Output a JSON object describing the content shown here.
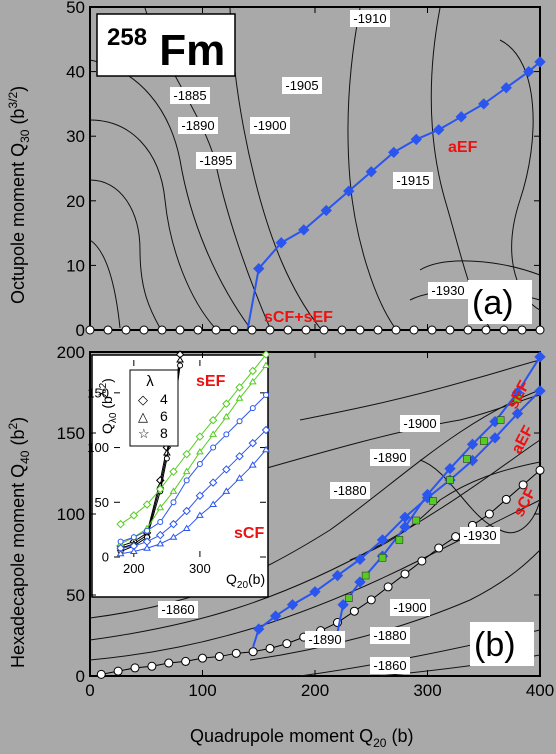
{
  "nucleus": {
    "mass": "258",
    "symbol": "Fm"
  },
  "panel_labels": {
    "a": "(a)",
    "b": "(b)"
  },
  "chart_data": [
    {
      "type": "line",
      "subplot": "a",
      "ylabel": "Octupole moment Q30 (b^3/2)",
      "xlim": [
        0,
        400
      ],
      "ylim": [
        0,
        50
      ],
      "xticks": [
        0,
        100,
        200,
        300,
        400
      ],
      "yticks": [
        0,
        10,
        20,
        30,
        40,
        50
      ],
      "contour_labels": [
        "-1885",
        "-1890",
        "-1895",
        "-1900",
        "-1905",
        "-1910",
        "-1915",
        "-1930"
      ],
      "path_labels": {
        "aEF": "aEF",
        "sym": "sCF+sEF"
      },
      "series": [
        {
          "name": "aEF",
          "color": "#2a55ee",
          "x": [
            140,
            150,
            170,
            190,
            210,
            230,
            250,
            270,
            290,
            310,
            330,
            350,
            370,
            390,
            400
          ],
          "y": [
            0,
            9.5,
            13.5,
            15.5,
            18.5,
            21.5,
            24.5,
            27.5,
            29.5,
            31,
            33,
            35,
            37.5,
            40,
            41.5
          ]
        },
        {
          "name": "sCF+sEF",
          "color": "#ffffff",
          "x": [
            0,
            16,
            32,
            48,
            64,
            80,
            96,
            112,
            128,
            144,
            160,
            176,
            192,
            208,
            224,
            240,
            256,
            272,
            288,
            304,
            320,
            336,
            352,
            368,
            384,
            400
          ],
          "y": [
            0,
            0,
            0,
            0,
            0,
            0,
            0,
            0,
            0,
            0,
            0,
            0,
            0,
            0,
            0,
            0,
            0,
            0,
            0,
            0,
            0,
            0,
            0,
            0,
            0,
            0
          ]
        }
      ]
    },
    {
      "type": "line",
      "subplot": "b",
      "xlabel": "Quadrupole moment Q20 (b)",
      "ylabel": "Hexadecapole moment Q40 (b^2)",
      "xlim": [
        0,
        400
      ],
      "ylim": [
        0,
        200
      ],
      "xticks": [
        0,
        100,
        200,
        300,
        400
      ],
      "yticks": [
        0,
        50,
        100,
        150,
        200
      ],
      "contour_labels": [
        "-1860",
        "-1880",
        "-1890",
        "-1900",
        "-1930",
        "-1890",
        "-1880",
        "-1900",
        "-1860"
      ],
      "path_labels": {
        "sEF": "sEF",
        "aEF": "aEF",
        "sCF": "sCF"
      },
      "series": [
        {
          "name": "sCF",
          "color": "#ffffff",
          "x": [
            10,
            25,
            40,
            55,
            70,
            85,
            100,
            115,
            130,
            145,
            160,
            175,
            190,
            205,
            220,
            235,
            250,
            265,
            280,
            295,
            310,
            325,
            340,
            355,
            370,
            385,
            400
          ],
          "y": [
            1,
            3,
            5,
            6,
            8,
            9,
            11,
            12,
            14,
            15,
            17,
            20,
            24,
            28,
            33,
            40,
            47,
            55,
            63,
            71,
            79,
            86,
            93,
            100,
            109,
            118,
            127
          ]
        },
        {
          "name": "aEF",
          "color": "#2a55ee",
          "x": [
            145,
            150,
            165,
            180,
            200,
            220,
            240,
            260,
            280,
            300,
            320,
            340,
            360,
            380,
            400
          ],
          "y": [
            18,
            29,
            37,
            44,
            52,
            62,
            72,
            84,
            98,
            110,
            121,
            133,
            147,
            162,
            176
          ]
        },
        {
          "name": "sEF",
          "color": "#2a55ee",
          "x": [
            220,
            225,
            240,
            260,
            280,
            300,
            320,
            340,
            360,
            380,
            400
          ],
          "y": [
            27,
            44,
            58,
            74,
            92,
            112,
            128,
            143,
            157,
            175,
            197
          ]
        },
        {
          "name": "sEF-green",
          "color": "#55cc22",
          "x": [
            230,
            245,
            260,
            275,
            290,
            305,
            320,
            335,
            350,
            365,
            380
          ],
          "y": [
            48,
            62,
            73,
            84,
            96,
            108,
            121,
            134,
            145,
            158,
            171
          ]
        }
      ]
    },
    {
      "type": "line",
      "subplot": "inset",
      "xlabel": "Q20(b)",
      "ylabel": "Qλ0 (bλ/2)",
      "xlim": [
        170,
        400
      ],
      "ylim": [
        0,
        180
      ],
      "xticks": [
        200,
        300
      ],
      "yticks": [
        0,
        50,
        100,
        150
      ],
      "legend_title": "λ",
      "legend": [
        "4",
        "6",
        "8"
      ],
      "path_labels": {
        "sEF": "sEF",
        "sCF": "sCF"
      },
      "series": [
        {
          "name": "sEF λ4",
          "color": "#000000",
          "x": [
            180,
            200,
            220,
            240,
            250,
            260,
            270
          ],
          "y": [
            10,
            14,
            22,
            70,
            100,
            140,
            185
          ]
        },
        {
          "name": "sEF λ6",
          "color": "#000000",
          "x": [
            180,
            200,
            220,
            240,
            250,
            260,
            270
          ],
          "y": [
            8,
            12,
            20,
            65,
            95,
            135,
            180
          ]
        },
        {
          "name": "sEF λ8",
          "color": "#000000",
          "x": [
            180,
            200,
            220,
            240,
            250,
            260,
            270
          ],
          "y": [
            5,
            10,
            18,
            60,
            90,
            130,
            175
          ]
        },
        {
          "name": "aEF λ4",
          "color": "#55cc22",
          "x": [
            180,
            200,
            220,
            240,
            260,
            280,
            300,
            320,
            340,
            360,
            380,
            400
          ],
          "y": [
            30,
            38,
            48,
            62,
            78,
            94,
            110,
            125,
            140,
            155,
            170,
            185
          ]
        },
        {
          "name": "aEF λ6",
          "color": "#55cc22",
          "x": [
            180,
            200,
            220,
            240,
            260,
            280,
            300,
            320,
            340,
            360,
            380,
            400
          ],
          "y": [
            12,
            18,
            26,
            45,
            60,
            78,
            96,
            112,
            128,
            145,
            160,
            175
          ]
        },
        {
          "name": "sCF λ4",
          "color": "#2a55ee",
          "x": [
            180,
            200,
            220,
            240,
            260,
            280,
            300,
            320,
            340,
            360,
            380,
            400
          ],
          "y": [
            14,
            18,
            24,
            32,
            50,
            70,
            85,
            100,
            112,
            124,
            136,
            148
          ]
        },
        {
          "name": "sCF λ6",
          "color": "#2a55ee",
          "x": [
            180,
            200,
            220,
            240,
            260,
            280,
            300,
            320,
            340,
            360,
            380,
            400
          ],
          "y": [
            8,
            10,
            14,
            20,
            30,
            42,
            56,
            68,
            80,
            92,
            104,
            116
          ]
        },
        {
          "name": "sCF λ8",
          "color": "#2a55ee",
          "x": [
            180,
            200,
            220,
            240,
            260,
            280,
            300,
            320,
            340,
            360,
            380,
            400
          ],
          "y": [
            3,
            5,
            8,
            12,
            18,
            26,
            38,
            48,
            60,
            72,
            84,
            98
          ]
        }
      ]
    }
  ]
}
